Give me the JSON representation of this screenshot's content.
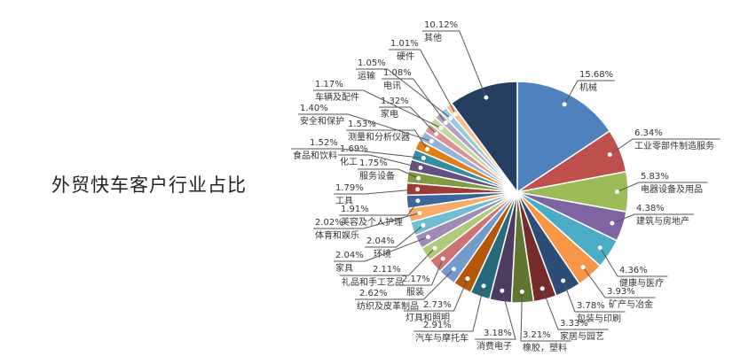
{
  "chart_data": {
    "type": "pie",
    "title": "外贸快车客户行业占比",
    "slices": [
      {
        "label": "机械",
        "value": 15.68,
        "text": "15.68%",
        "color": "#4F81BD"
      },
      {
        "label": "工业零部件制造服务",
        "value": 6.34,
        "text": "6.34%",
        "color": "#C0504D"
      },
      {
        "label": "电器设备及用品",
        "value": 5.83,
        "text": "5.83%",
        "color": "#9BBB59"
      },
      {
        "label": "建筑与房地产",
        "value": 4.38,
        "text": "4.38%",
        "color": "#8064A2"
      },
      {
        "label": "健康与医疗",
        "value": 4.36,
        "text": "4.36%",
        "color": "#4BACC6"
      },
      {
        "label": "矿产与冶金",
        "value": 3.93,
        "text": "3.93%",
        "color": "#F79646"
      },
      {
        "label": "包装与印刷",
        "value": 3.78,
        "text": "3.78%",
        "color": "#2C4D75"
      },
      {
        "label": "家居与园艺",
        "value": 3.33,
        "text": "3.33%",
        "color": "#772C2A"
      },
      {
        "label": "橡胶，塑料",
        "value": 3.21,
        "text": "3.21%",
        "color": "#5F7530"
      },
      {
        "label": "消费电子",
        "value": 3.18,
        "text": "3.18%",
        "color": "#4D3B62"
      },
      {
        "label": "汽车与摩托车",
        "value": 2.91,
        "text": "2.91%",
        "color": "#276A7C"
      },
      {
        "label": "灯具和照明",
        "value": 2.73,
        "text": "2.73%",
        "color": "#B65708"
      },
      {
        "label": "纺织及皮革制品",
        "value": 2.62,
        "text": "2.62%",
        "color": "#729ACA"
      },
      {
        "label": "服装",
        "value": 2.17,
        "text": "2.17%",
        "color": "#CD7371"
      },
      {
        "label": "礼品和手工艺品",
        "value": 2.11,
        "text": "2.11%",
        "color": "#AFC97A"
      },
      {
        "label": "家具",
        "value": 2.04,
        "text": "2.04%",
        "color": "#A08BB8"
      },
      {
        "label": "环境",
        "value": 2.04,
        "text": "2.04%",
        "color": "#6FBDD1"
      },
      {
        "label": "体育和娱乐",
        "value": 2.02,
        "text": "2.02%",
        "color": "#F9AB6B"
      },
      {
        "label": "美容及个人护理",
        "value": 1.91,
        "text": "1.91%",
        "color": "#3A679C"
      },
      {
        "label": "工具",
        "value": 1.79,
        "text": "1.79%",
        "color": "#9E3B38"
      },
      {
        "label": "服务设备",
        "value": 1.75,
        "text": "1.75%",
        "color": "#7E9C40"
      },
      {
        "label": "化工",
        "value": 1.69,
        "text": "1.69%",
        "color": "#664F83"
      },
      {
        "label": "食品和饮料",
        "value": 1.52,
        "text": "1.52%",
        "color": "#358EA6"
      },
      {
        "label": "测量和分析仪器",
        "value": 1.53,
        "text": "1.53%",
        "color": "#E07E1A"
      },
      {
        "label": "安全和保护",
        "value": 1.4,
        "text": "1.40%",
        "color": "#95B3D7"
      },
      {
        "label": "家电",
        "value": 1.32,
        "text": "1.32%",
        "color": "#D99694"
      },
      {
        "label": "车辆及配件",
        "value": 1.17,
        "text": "1.17%",
        "color": "#C3D69B"
      },
      {
        "label": "电讯",
        "value": 1.08,
        "text": "1.08%",
        "color": "#B2A2C7"
      },
      {
        "label": "运输",
        "value": 1.05,
        "text": "1.05%",
        "color": "#93CDDD"
      },
      {
        "label": "硬件",
        "value": 1.01,
        "text": "1.01%",
        "color": "#FAC090"
      },
      {
        "label": "其他",
        "value": 10.12,
        "text": "10.12%",
        "color": "#243F60"
      }
    ]
  }
}
